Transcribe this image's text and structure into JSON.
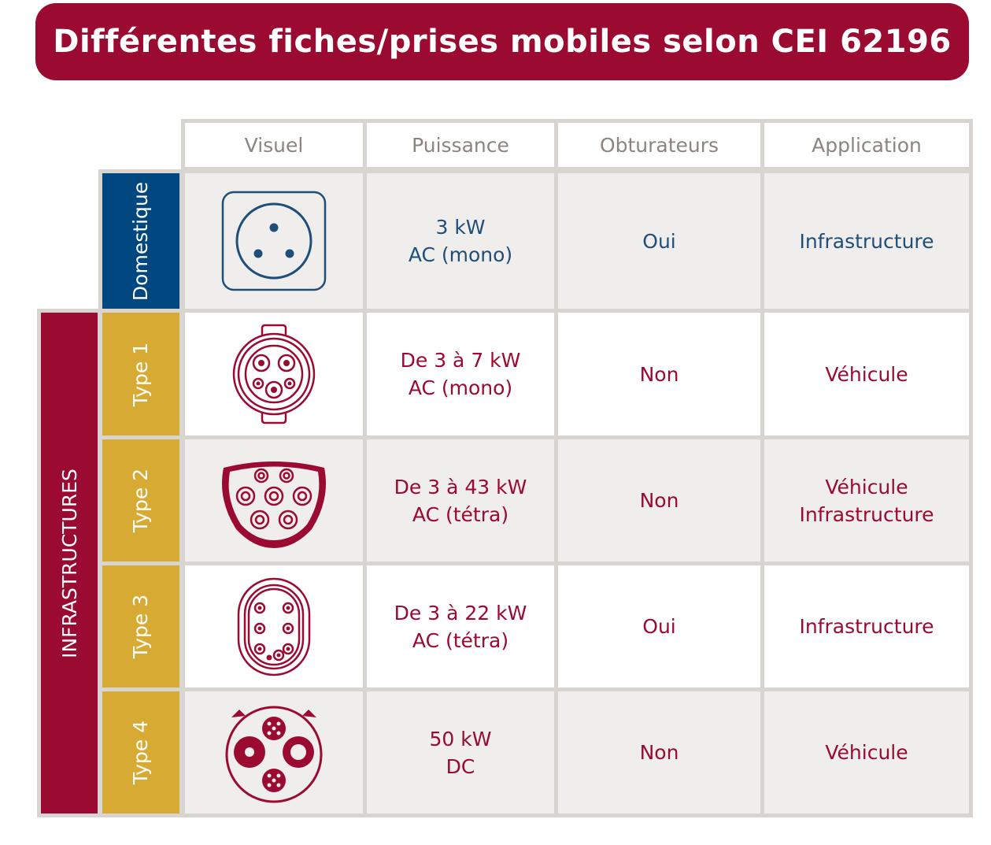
{
  "title": "Différentes fiches/prises mobiles selon CEI 62196",
  "headers": [
    "Visuel",
    "Puissance",
    "Obturateurs",
    "Application"
  ],
  "groups": {
    "domestique": "Domestique",
    "infrastructures": "INFRASTRUCTURES"
  },
  "rows": [
    {
      "label": "Domestique",
      "icon": "domestic-socket-icon",
      "puissance": "3 kW\nAC (mono)",
      "obturateurs": "Oui",
      "application": "Infrastructure"
    },
    {
      "label": "Type 1",
      "icon": "type1-connector-icon",
      "puissance": "De 3 à 7 kW\nAC (mono)",
      "obturateurs": "Non",
      "application": "Véhicule"
    },
    {
      "label": "Type 2",
      "icon": "type2-connector-icon",
      "puissance": "De 3 à 43 kW\nAC (tétra)",
      "obturateurs": "Non",
      "application": "Véhicule\nInfrastructure"
    },
    {
      "label": "Type 3",
      "icon": "type3-connector-icon",
      "puissance": "De 3 à 22 kW\nAC (tétra)",
      "obturateurs": "Oui",
      "application": "Infrastructure"
    },
    {
      "label": "Type 4",
      "icon": "type4-connector-icon",
      "puissance": "50 kW\nDC",
      "obturateurs": "Non",
      "application": "Véhicule"
    }
  ],
  "colors": {
    "banner": "#9b0a30",
    "domestique": "#00467f",
    "type_label": "#d6aa33",
    "infrastructures": "#9b0a30",
    "icon_blue": "#1f4e79",
    "icon_red": "#9b0a30",
    "grid": "#d8d4cf",
    "cell_shade": "#f0eeec"
  }
}
